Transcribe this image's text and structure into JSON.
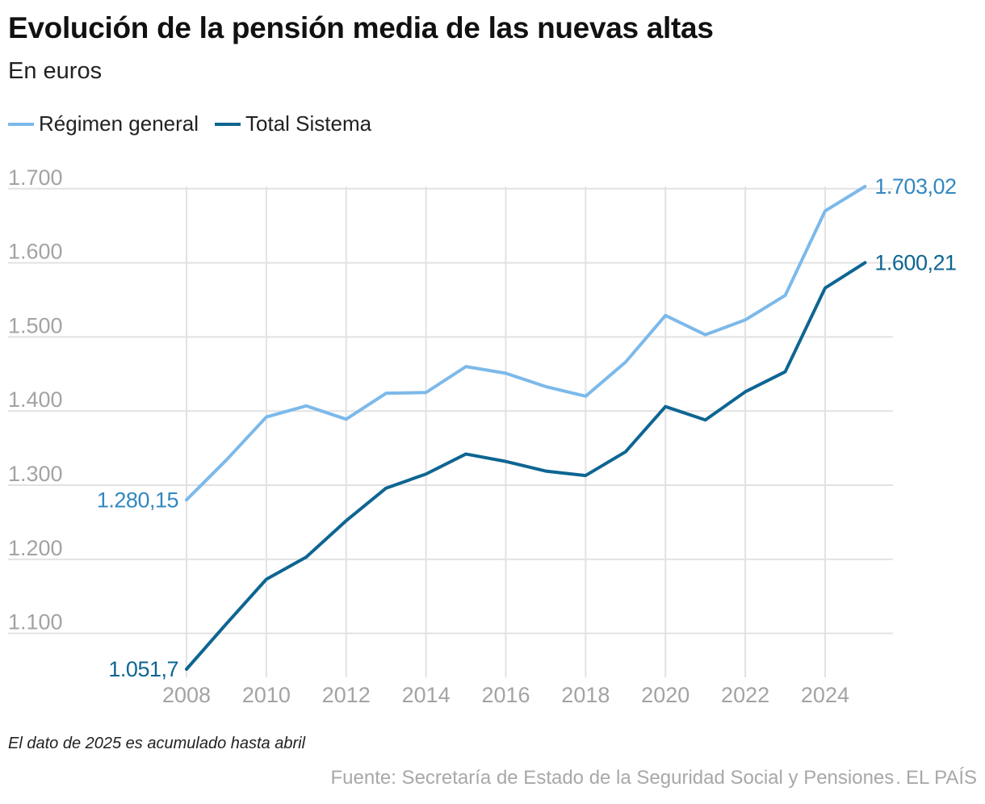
{
  "header": {
    "title": "Evolución de la pensión media de las nuevas altas",
    "subtitle": "En euros"
  },
  "footer": {
    "note": "El dato de 2025 es acumulado hasta abril",
    "source": "Fuente: Secretaría de Estado de la Seguridad Social y Pensiones",
    "separator": ".",
    "brand": "EL PAÍS"
  },
  "colors": {
    "regimen_general": "#7cb9ea",
    "total_sistema": "#0e6592",
    "regimen_general_label": "#3388c0",
    "total_sistema_label": "#0e6592",
    "grid": "#e2e2e2",
    "axis_text": "#a3a3a3"
  },
  "chart_data": {
    "type": "line",
    "title": "Evolución de la pensión media de las nuevas altas",
    "subtitle": "En euros",
    "xlabel": "",
    "ylabel": "",
    "x": [
      2008,
      2009,
      2010,
      2011,
      2012,
      2013,
      2014,
      2015,
      2016,
      2017,
      2018,
      2019,
      2020,
      2021,
      2022,
      2023,
      2024,
      2025
    ],
    "xticks": [
      2008,
      2010,
      2012,
      2014,
      2016,
      2018,
      2020,
      2022,
      2024
    ],
    "xtick_labels": [
      "2008",
      "2010",
      "2012",
      "2014",
      "2016",
      "2018",
      "2020",
      "2022",
      "2024"
    ],
    "xlim": [
      2008,
      2025.7
    ],
    "yticks": [
      1100,
      1200,
      1300,
      1400,
      1500,
      1600,
      1700
    ],
    "ytick_labels": [
      "1.100",
      "1.200",
      "1.300",
      "1.400",
      "1.500",
      "1.600",
      "1.700"
    ],
    "ylim": [
      1051.7,
      1703.02
    ],
    "grid": true,
    "legend_position": "top-left",
    "series": [
      {
        "key": "regimen_general",
        "name": "Régimen general",
        "values": [
          1280.15,
          1334,
          1392,
          1407,
          1389,
          1424,
          1425,
          1460,
          1451,
          1433,
          1420,
          1466,
          1529,
          1503,
          1523,
          1556,
          1670,
          1703.02
        ],
        "start_label": "1.280,15",
        "end_label": "1.703,02"
      },
      {
        "key": "total_sistema",
        "name": "Total Sistema",
        "values": [
          1051.7,
          1113,
          1173,
          1203,
          1252,
          1296,
          1315,
          1342,
          1332,
          1319,
          1313,
          1345,
          1406,
          1388,
          1426,
          1453,
          1566,
          1600.21
        ],
        "start_label": "1.051,7",
        "end_label": "1.600,21"
      }
    ]
  }
}
